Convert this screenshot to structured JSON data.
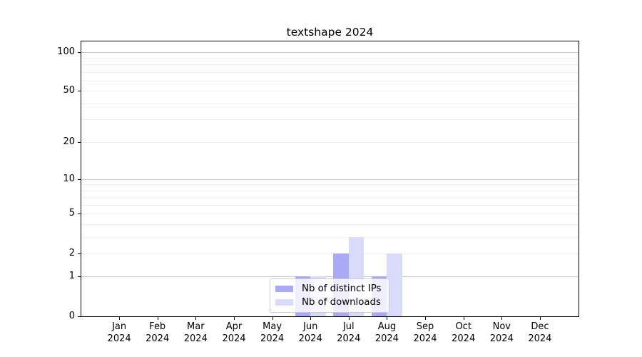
{
  "chart_data": {
    "type": "bar",
    "title": "textshape 2024",
    "month_labels": [
      "Jan",
      "Feb",
      "Mar",
      "Apr",
      "May",
      "Jun",
      "Jul",
      "Aug",
      "Sep",
      "Oct",
      "Nov",
      "Dec"
    ],
    "year_label": "2024",
    "categories": [
      "Jan 2024",
      "Feb 2024",
      "Mar 2024",
      "Apr 2024",
      "May 2024",
      "Jun 2024",
      "Jul 2024",
      "Aug 2024",
      "Sep 2024",
      "Oct 2024",
      "Nov 2024",
      "Dec 2024"
    ],
    "series": [
      {
        "name": "Nb of distinct IPs",
        "color": "#a9aaf6",
        "values": [
          0,
          0,
          0,
          0,
          0,
          1,
          2,
          1,
          0,
          0,
          0,
          0
        ]
      },
      {
        "name": "Nb of downloads",
        "color": "#d9dbfa",
        "values": [
          0,
          0,
          0,
          0,
          0,
          1,
          3,
          2,
          0,
          0,
          0,
          0
        ]
      }
    ],
    "yscale": "log1p",
    "ylim": [
      0,
      120
    ],
    "ytick_labels": [
      0,
      1,
      2,
      5,
      10,
      20,
      50,
      100
    ],
    "grid": true,
    "grid_major": [
      1,
      10,
      100
    ],
    "grid_minor": [
      2,
      3,
      4,
      5,
      6,
      7,
      8,
      9,
      20,
      30,
      40,
      50,
      60,
      70,
      80,
      90
    ],
    "grid_major_color": "#c8c8c8",
    "grid_minor_color": "#ececec",
    "legend_position": "lower center"
  }
}
